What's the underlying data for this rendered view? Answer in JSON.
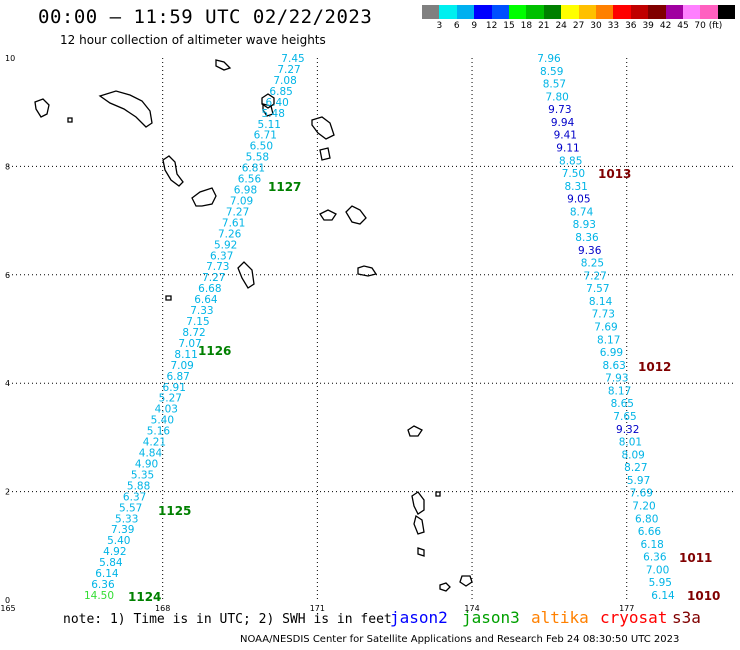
{
  "header": {
    "title": "00:00 – 11:59 UTC 02/22/2023",
    "subtitle": "12 hour collection of altimeter wave heights"
  },
  "colorbar": {
    "colors": [
      "#808080",
      "#00f0f0",
      "#00b0f0",
      "#0000ff",
      "#0050ff",
      "#00ff00",
      "#00c000",
      "#008000",
      "#ffff00",
      "#ffc000",
      "#ff8000",
      "#ff0000",
      "#c00000",
      "#800000",
      "#a000a0",
      "#ff80ff",
      "#ff60c0",
      "#000000"
    ],
    "labels": [
      "3",
      "6",
      "9",
      "12",
      "15",
      "18",
      "21",
      "24",
      "27",
      "30",
      "33",
      "36",
      "39",
      "42",
      "45",
      "70 (ft)"
    ]
  },
  "map": {
    "x_ticks": [
      "165",
      "168",
      "171",
      "174",
      "177"
    ],
    "y_ticks": [
      "0",
      "2",
      "4",
      "6",
      "8",
      "10"
    ]
  },
  "tracks": [
    {
      "name": "left_track",
      "values": [
        "7.45",
        "7.27",
        "7.08",
        "6.85",
        "6.40",
        "5.48",
        "5.11",
        "6.71",
        "6.50",
        "5.58",
        "6.81",
        "6.56",
        "6.98",
        "7.09",
        "7.27",
        "7.61",
        "7.26",
        "5.92",
        "6.37",
        "7.73",
        "7.27",
        "6.68",
        "6.64",
        "7.33",
        "7.15",
        "8.72",
        "7.07",
        "8.11",
        "7.09",
        "6.87",
        "6.91",
        "5.27",
        "4.03",
        "5.40",
        "5.16",
        "4.21",
        "4.84",
        "4.90",
        "5.35",
        "5.88",
        "6.37",
        "5.57",
        "5.33",
        "7.39",
        "5.40",
        "4.92",
        "5.84",
        "6.14",
        "6.36",
        "14.50"
      ]
    },
    {
      "name": "right_track",
      "values": [
        "7.96",
        "8.59",
        "8.57",
        "7.80",
        "9.73",
        "9.94",
        "9.41",
        "9.11",
        "8.85",
        "7.50",
        "8.31",
        "9.05",
        "8.74",
        "8.93",
        "8.36",
        "9.36",
        "8.25",
        "7.27",
        "7.57",
        "8.14",
        "7.73",
        "7.69",
        "8.17",
        "6.99",
        "8.63",
        "7.93",
        "8.17",
        "8.65",
        "7.65",
        "9.32",
        "8.01",
        "8.09",
        "8.27",
        "5.97",
        "7.69",
        "7.20",
        "6.80",
        "6.66",
        "6.18",
        "6.36",
        "7.00",
        "5.95",
        "6.14"
      ]
    }
  ],
  "timestamps": [
    {
      "label": "1127",
      "color": "#008000"
    },
    {
      "label": "1126",
      "color": "#008000"
    },
    {
      "label": "1125",
      "color": "#008000"
    },
    {
      "label": "1124",
      "color": "#008000"
    },
    {
      "label": "1013",
      "color": "#800000"
    },
    {
      "label": "1012",
      "color": "#800000"
    },
    {
      "label": "1011",
      "color": "#800000"
    },
    {
      "label": "1010",
      "color": "#800000"
    }
  ],
  "footer": {
    "note": "note: 1) Time is in UTC; 2) SWH is in feet",
    "satellites": [
      {
        "name": "jason2",
        "color": "#0000ff"
      },
      {
        "name": "jason3",
        "color": "#00a000"
      },
      {
        "name": "altika",
        "color": "#ff8000"
      },
      {
        "name": "cryosat",
        "color": "#ff0000"
      },
      {
        "name": "s3a",
        "color": "#800000"
      }
    ],
    "credit": "NOAA/NESDIS Center for Satellite Applications and Research    Feb 24 08:30:50 UTC 2023"
  }
}
